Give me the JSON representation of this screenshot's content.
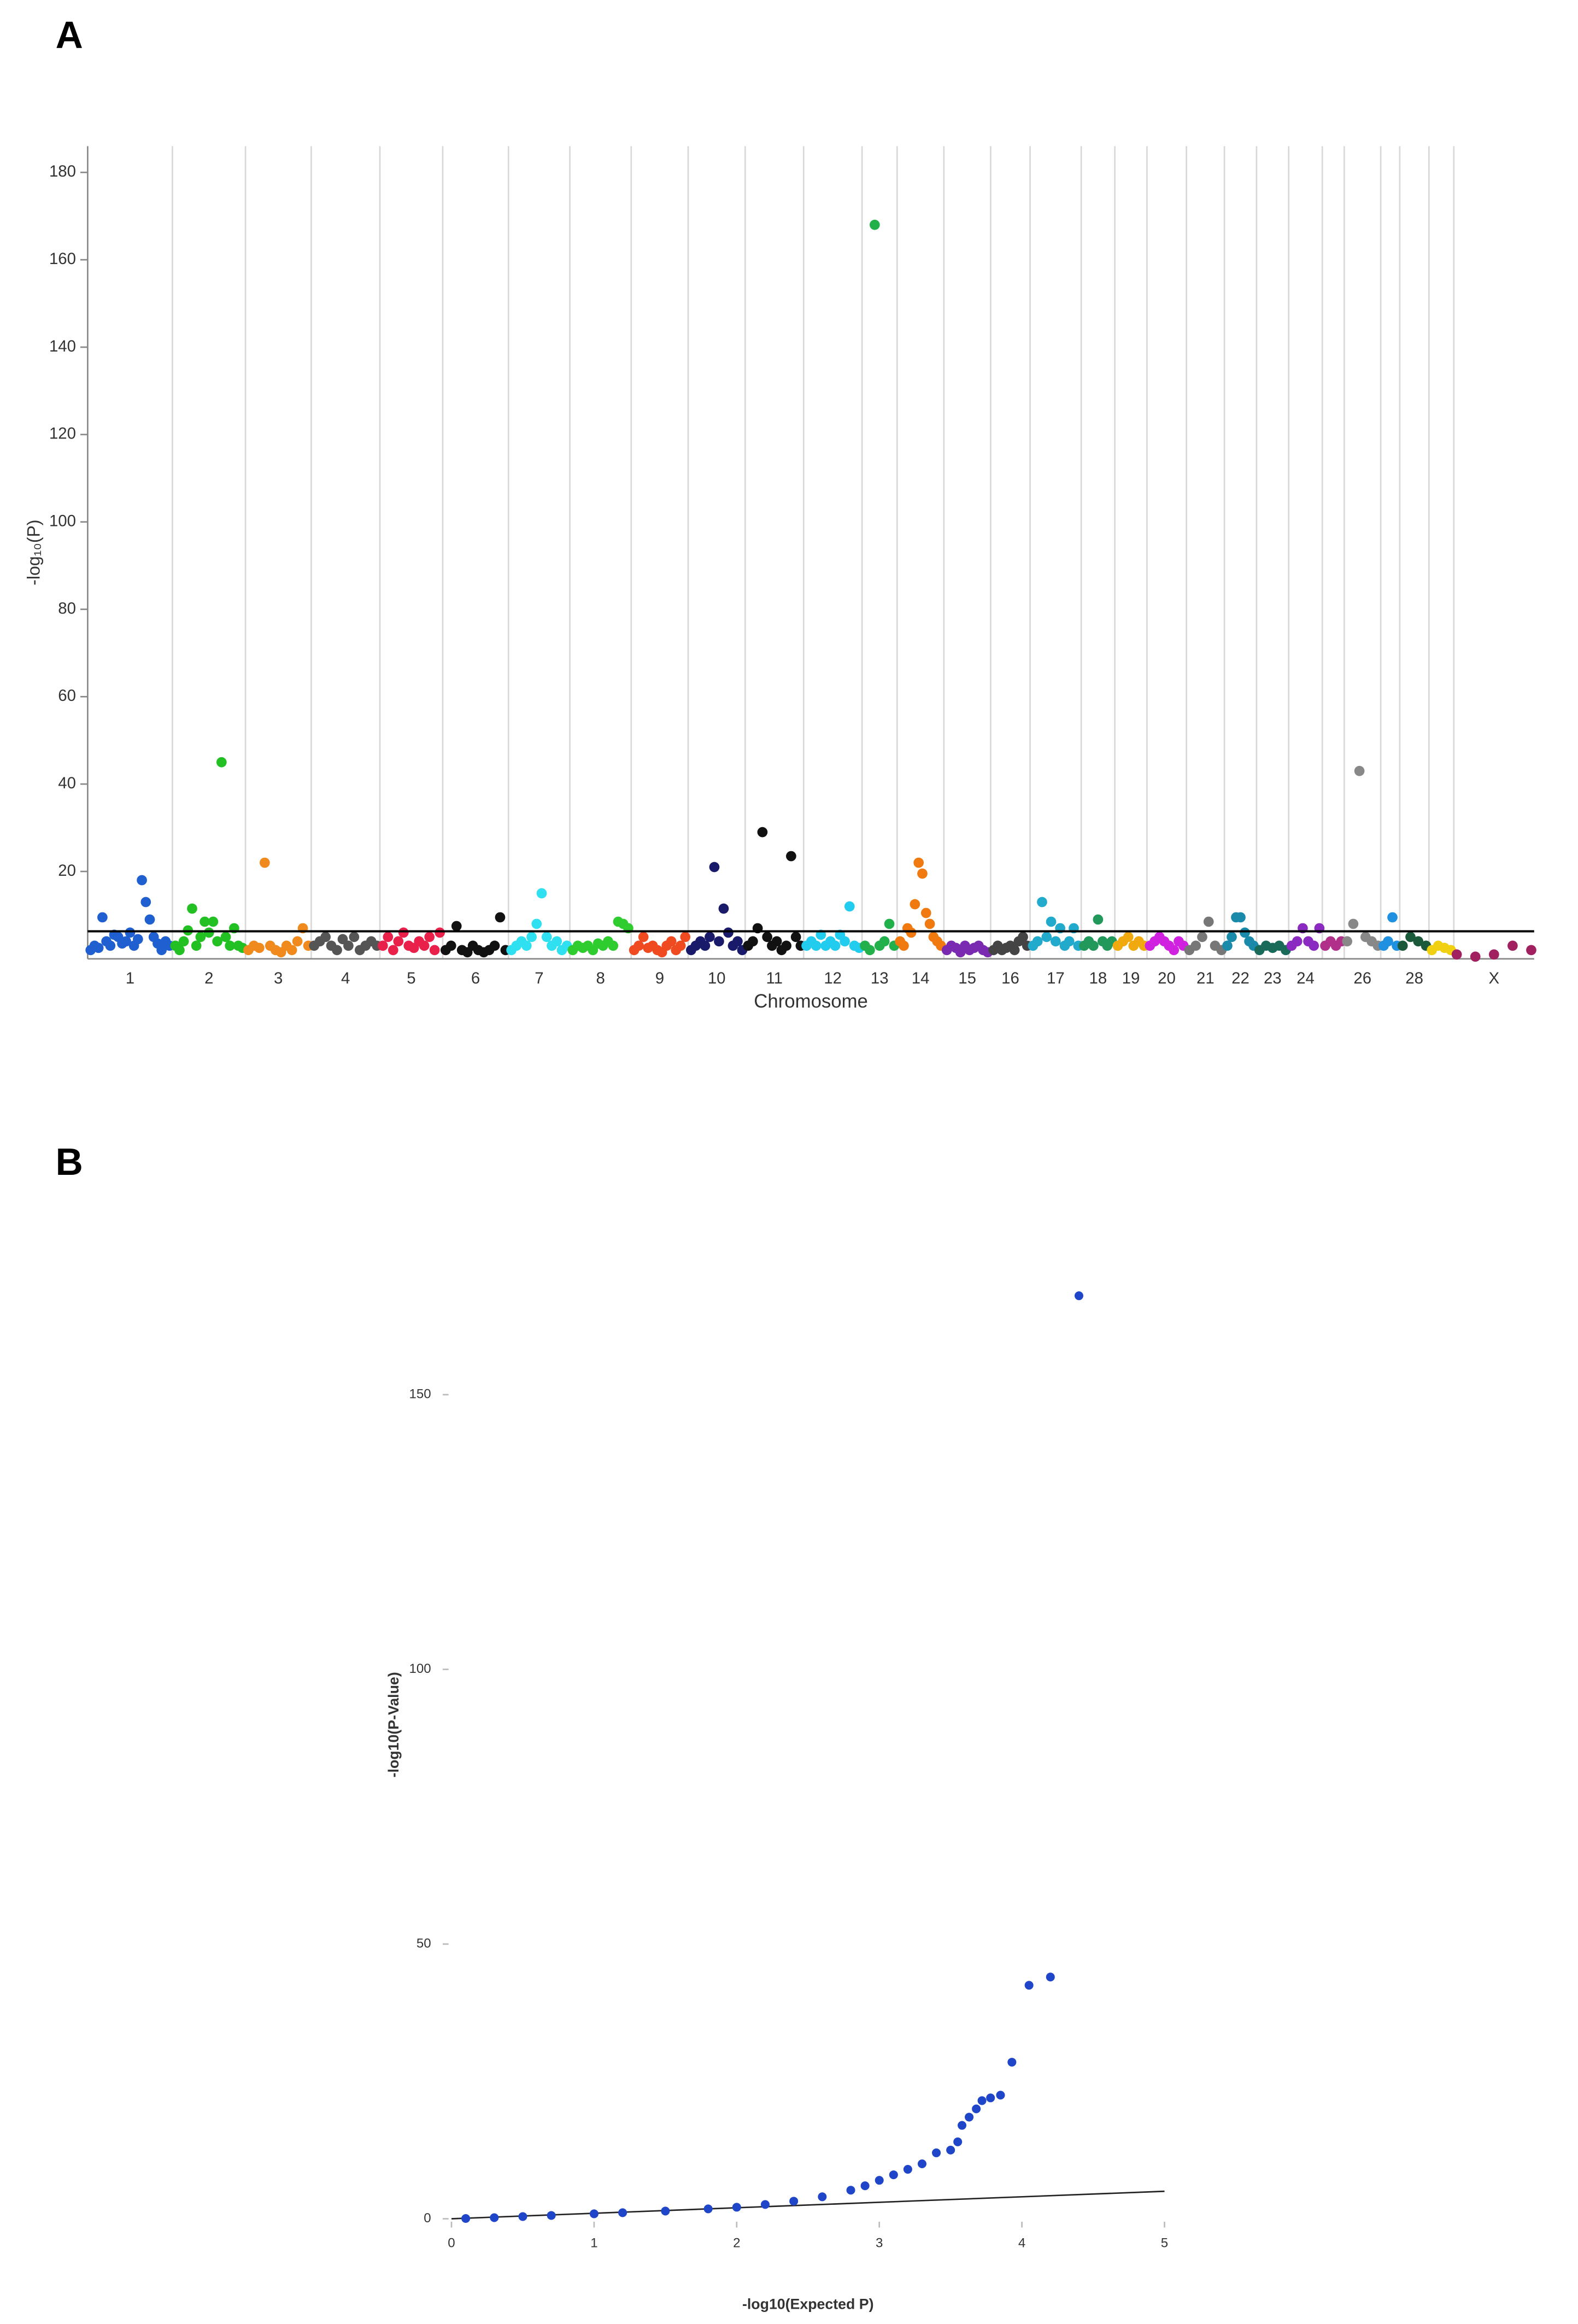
{
  "chart_data": [
    {
      "type": "manhattan",
      "panel": "A",
      "x_label": "Chromosome",
      "y_label": "-log₁₀(P)",
      "ylim": [
        0,
        186
      ],
      "yticks": [
        20,
        40,
        60,
        80,
        100,
        120,
        140,
        160,
        180
      ],
      "threshold": 6.3,
      "categories": [
        "1",
        "2",
        "3",
        "4",
        "5",
        "6",
        "7",
        "8",
        "9",
        "10",
        "11",
        "12",
        "13",
        "14",
        "15",
        "16",
        "17",
        "18",
        "19",
        "20",
        "21",
        "22",
        "23",
        "24",
        null,
        "26",
        null,
        "28",
        null,
        "X"
      ],
      "colors": [
        "#1f5fcf",
        "#22c022",
        "#f08a1c",
        "#555555",
        "#e8204a",
        "#111111",
        "#2ee0f0",
        "#2ecc2e",
        "#f04a20",
        "#1a1a6a",
        "#111111",
        "#22ccee",
        "#22b04a",
        "#f07a10",
        "#7a2ab0",
        "#444444",
        "#22aacc",
        "#22995a",
        "#f0aa10",
        "#d020e0",
        "#777777",
        "#1a8aaa",
        "#1a6a5a",
        "#8a2ac0",
        "#b0308a",
        "#888888",
        "#2090e0",
        "#1a5a3a",
        "#f0d010",
        "#a02060"
      ],
      "points": [
        [
          2,
          3,
          2.5,
          9.5,
          4,
          3,
          5.5,
          5,
          3.5,
          4,
          6,
          3,
          4.5,
          18,
          13,
          9,
          5,
          3.5,
          2,
          4,
          3
        ],
        [
          3,
          2,
          4,
          6.5,
          11.5,
          3,
          5,
          8.5,
          6,
          8.5,
          4,
          45,
          5,
          3,
          7,
          3,
          2.5
        ],
        [
          2,
          3,
          2.5,
          22,
          3,
          2,
          1.5,
          3,
          2,
          4,
          7,
          3
        ],
        [
          3,
          4,
          5,
          3,
          2,
          4.5,
          3,
          5,
          2,
          3,
          4,
          3
        ],
        [
          3,
          5,
          2,
          4,
          6,
          3,
          2.5,
          4,
          3,
          5,
          2,
          6
        ],
        [
          2,
          3,
          7.5,
          2,
          1.5,
          3,
          2,
          1.5,
          2,
          3,
          9.5,
          2
        ],
        [
          2,
          3,
          4,
          3,
          5,
          8,
          15,
          5,
          3,
          4,
          2,
          3
        ],
        [
          2,
          3,
          2.5,
          3,
          2,
          3.5,
          3,
          4,
          3,
          8.5,
          8,
          7
        ],
        [
          2,
          3,
          5,
          2.5,
          3,
          2,
          1.5,
          3,
          4,
          2,
          3,
          5
        ],
        [
          2,
          3,
          4,
          3,
          5,
          21,
          4,
          11.5,
          6,
          3,
          4,
          2
        ],
        [
          3,
          4,
          7,
          29,
          5,
          3,
          4,
          2,
          3,
          23.5,
          5,
          3
        ],
        [
          3,
          4,
          3,
          5.5,
          3,
          4,
          3,
          5.5,
          4,
          12,
          3,
          2.5
        ],
        [
          3,
          2,
          168,
          3,
          4,
          8,
          3
        ],
        [
          4,
          3,
          7,
          6,
          12.5,
          22,
          19.5,
          10.5,
          8,
          5,
          4,
          3
        ],
        [
          2,
          3,
          2.5,
          1.5,
          3,
          2,
          2.5,
          3,
          2,
          1.5
        ],
        [
          2,
          3,
          2,
          2.5,
          3,
          2,
          4,
          5,
          3
        ],
        [
          3,
          4,
          13,
          5,
          8.5,
          4,
          7,
          3,
          4,
          7,
          3
        ],
        [
          3,
          4,
          3,
          9,
          4,
          3,
          4
        ],
        [
          3,
          4,
          5,
          3,
          4,
          3
        ],
        [
          3,
          4,
          5,
          4,
          3,
          2,
          4,
          3
        ],
        [
          2,
          3,
          5,
          8.5,
          3,
          2
        ],
        [
          3,
          5,
          9.5,
          9.5,
          6,
          4,
          3
        ],
        [
          2,
          3,
          2.5,
          3,
          2
        ],
        [
          3,
          4,
          7,
          4,
          3,
          7
        ],
        [
          3,
          4,
          3,
          4
        ],
        [
          4,
          8,
          43,
          5,
          4,
          3
        ],
        [
          3,
          4,
          9.5,
          3
        ],
        [
          3,
          5,
          4,
          3
        ],
        [
          2,
          3,
          2.5,
          2
        ],
        [
          1,
          0.5,
          1,
          3,
          2
        ]
      ]
    },
    {
      "type": "qq",
      "panel": "B",
      "x_label": "-log10(Expected P)",
      "y_label": "-log10(P-Value)",
      "xlim": [
        0,
        5
      ],
      "xticks": [
        0,
        1,
        2,
        3,
        4,
        5
      ],
      "ylim": [
        0,
        170
      ],
      "yticks": [
        0,
        50,
        100,
        150
      ],
      "color": "#1f45c8",
      "x": [
        0.1,
        0.3,
        0.5,
        0.7,
        1,
        1.2,
        1.5,
        1.8,
        2,
        2.2,
        2.4,
        2.6,
        2.8,
        2.9,
        3,
        3.1,
        3.2,
        3.3,
        3.4,
        3.5,
        3.55,
        3.58,
        3.63,
        3.68,
        3.72,
        3.78,
        3.85,
        3.93,
        4.05,
        4.2,
        4.4
      ],
      "values": [
        0.05,
        0.2,
        0.4,
        0.6,
        0.9,
        1.1,
        1.4,
        1.8,
        2.1,
        2.6,
        3.2,
        4,
        5.2,
        6,
        7,
        8,
        9,
        10,
        12,
        12.5,
        14,
        17,
        18.5,
        20,
        21.5,
        22,
        22.5,
        28.5,
        42.5,
        44,
        168
      ],
      "reference": {
        "x": [
          0,
          5
        ],
        "values": [
          0,
          5
        ]
      }
    }
  ]
}
